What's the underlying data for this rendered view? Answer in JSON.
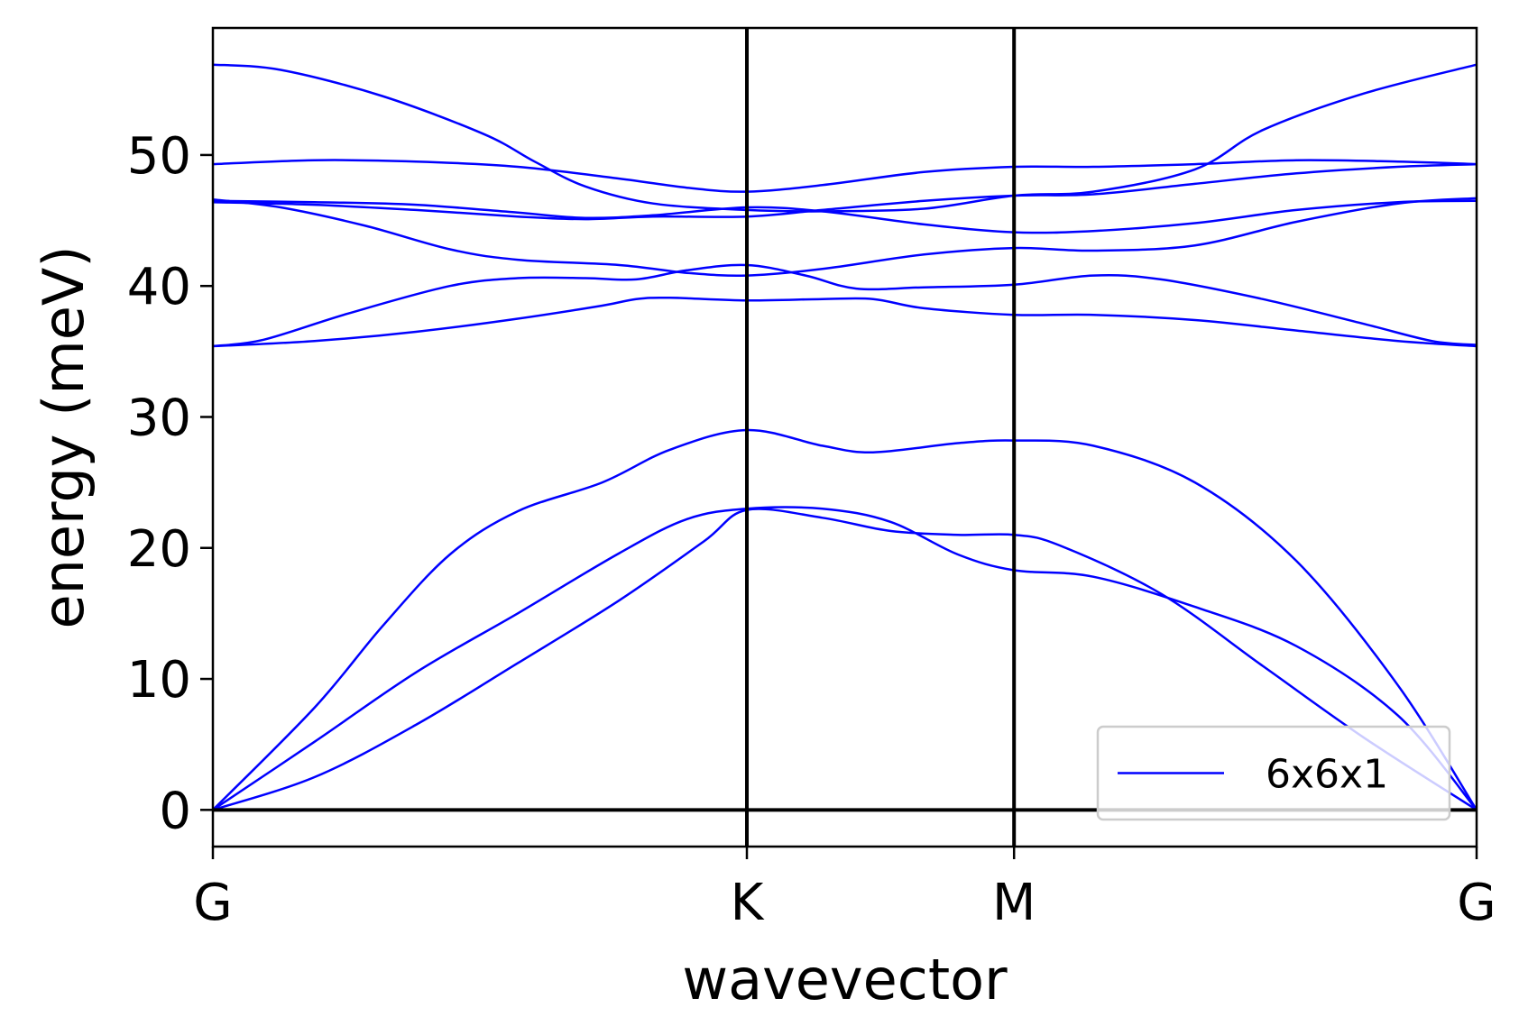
{
  "chart_data": {
    "type": "line",
    "xlabel": "wavevector",
    "ylabel": "energy (meV)",
    "xlim": [
      0,
      3.732
    ],
    "ylim": [
      -2.8,
      59.7
    ],
    "x_ticks": [
      {
        "label": "G",
        "x": 0
      },
      {
        "label": "K",
        "x": 1.577
      },
      {
        "label": "M",
        "x": 2.366
      },
      {
        "label": "G",
        "x": 3.732
      }
    ],
    "y_ticks": [
      0,
      10,
      20,
      30,
      40,
      50
    ],
    "vertical_lines_at": [
      1.577,
      2.366
    ],
    "horizontal_line_at": 0,
    "grid": false,
    "legend": {
      "position": "lower-right",
      "entries": [
        "6x6x1"
      ]
    },
    "series_color": "#0000ff",
    "series": [
      {
        "name": "6x6x1",
        "points": [
          [
            0,
            0
          ],
          [
            0.3,
            2.5
          ],
          [
            0.6,
            6.5
          ],
          [
            0.9,
            11.2
          ],
          [
            1.2,
            16
          ],
          [
            1.45,
            20.5
          ],
          [
            1.577,
            22.9
          ],
          [
            1.8,
            22.3
          ],
          [
            2.0,
            21.3
          ],
          [
            2.2,
            21.0
          ],
          [
            2.366,
            21.0
          ],
          [
            2.5,
            20.2
          ],
          [
            2.8,
            16.5
          ],
          [
            3.1,
            11
          ],
          [
            3.4,
            5.5
          ],
          [
            3.732,
            0
          ]
        ]
      },
      {
        "name": "",
        "points": [
          [
            0,
            0
          ],
          [
            0.3,
            5.2
          ],
          [
            0.6,
            10.5
          ],
          [
            0.9,
            15
          ],
          [
            1.2,
            19.6
          ],
          [
            1.4,
            22.2
          ],
          [
            1.577,
            23.0
          ],
          [
            1.8,
            23.0
          ],
          [
            2.0,
            22.0
          ],
          [
            2.2,
            19.5
          ],
          [
            2.366,
            18.3
          ],
          [
            2.6,
            17.8
          ],
          [
            2.9,
            15.5
          ],
          [
            3.2,
            12.5
          ],
          [
            3.5,
            7.2
          ],
          [
            3.732,
            0
          ]
        ]
      },
      {
        "name": "",
        "points": [
          [
            0,
            0
          ],
          [
            0.3,
            7.8
          ],
          [
            0.5,
            14
          ],
          [
            0.7,
            19.5
          ],
          [
            0.9,
            22.8
          ],
          [
            1.15,
            25
          ],
          [
            1.35,
            27.5
          ],
          [
            1.577,
            29.0
          ],
          [
            1.8,
            27.8
          ],
          [
            1.95,
            27.3
          ],
          [
            2.2,
            28.0
          ],
          [
            2.366,
            28.2
          ],
          [
            2.6,
            27.8
          ],
          [
            2.9,
            25
          ],
          [
            3.2,
            19
          ],
          [
            3.5,
            9.5
          ],
          [
            3.732,
            0
          ]
        ]
      },
      {
        "name": "",
        "points": [
          [
            0,
            35.4
          ],
          [
            0.3,
            35.8
          ],
          [
            0.6,
            36.5
          ],
          [
            0.9,
            37.5
          ],
          [
            1.15,
            38.5
          ],
          [
            1.25,
            39.0
          ],
          [
            1.35,
            39.1
          ],
          [
            1.577,
            38.9
          ],
          [
            1.8,
            39.0
          ],
          [
            1.95,
            39.0
          ],
          [
            2.1,
            38.3
          ],
          [
            2.366,
            37.8
          ],
          [
            2.6,
            37.8
          ],
          [
            2.9,
            37.4
          ],
          [
            3.2,
            36.6
          ],
          [
            3.5,
            35.8
          ],
          [
            3.732,
            35.4
          ]
        ]
      },
      {
        "name": "",
        "points": [
          [
            0,
            35.4
          ],
          [
            0.15,
            35.9
          ],
          [
            0.4,
            37.9
          ],
          [
            0.7,
            40.0
          ],
          [
            0.9,
            40.6
          ],
          [
            1.1,
            40.6
          ],
          [
            1.25,
            40.5
          ],
          [
            1.4,
            41.2
          ],
          [
            1.577,
            41.6
          ],
          [
            1.75,
            40.8
          ],
          [
            1.9,
            39.8
          ],
          [
            2.1,
            39.9
          ],
          [
            2.366,
            40.1
          ],
          [
            2.6,
            40.8
          ],
          [
            2.8,
            40.5
          ],
          [
            3.1,
            39.0
          ],
          [
            3.4,
            37.1
          ],
          [
            3.6,
            35.8
          ],
          [
            3.732,
            35.5
          ]
        ]
      },
      {
        "name": "",
        "points": [
          [
            0,
            46.6
          ],
          [
            0.2,
            46.0
          ],
          [
            0.45,
            44.6
          ],
          [
            0.7,
            42.8
          ],
          [
            0.9,
            42.0
          ],
          [
            1.2,
            41.6
          ],
          [
            1.4,
            41.0
          ],
          [
            1.577,
            40.8
          ],
          [
            1.8,
            41.3
          ],
          [
            2.1,
            42.4
          ],
          [
            2.366,
            42.9
          ],
          [
            2.6,
            42.7
          ],
          [
            2.9,
            43.1
          ],
          [
            3.2,
            44.9
          ],
          [
            3.5,
            46.3
          ],
          [
            3.732,
            46.7
          ]
        ]
      },
      {
        "name": "",
        "points": [
          [
            0,
            46.4
          ],
          [
            0.3,
            46.2
          ],
          [
            0.6,
            45.8
          ],
          [
            0.9,
            45.3
          ],
          [
            1.1,
            45.1
          ],
          [
            1.3,
            45.3
          ],
          [
            1.577,
            45.3
          ],
          [
            1.8,
            45.8
          ],
          [
            2.1,
            46.5
          ],
          [
            2.366,
            46.9
          ],
          [
            2.6,
            47.0
          ],
          [
            2.9,
            47.8
          ],
          [
            3.2,
            48.6
          ],
          [
            3.5,
            49.1
          ],
          [
            3.732,
            49.3
          ]
        ]
      },
      {
        "name": "",
        "points": [
          [
            0,
            46.5
          ],
          [
            0.3,
            46.4
          ],
          [
            0.6,
            46.2
          ],
          [
            0.9,
            45.6
          ],
          [
            1.1,
            45.2
          ],
          [
            1.3,
            45.4
          ],
          [
            1.577,
            46.0
          ],
          [
            1.8,
            45.7
          ],
          [
            2.1,
            44.7
          ],
          [
            2.366,
            44.1
          ],
          [
            2.6,
            44.2
          ],
          [
            2.9,
            44.8
          ],
          [
            3.2,
            45.8
          ],
          [
            3.5,
            46.4
          ],
          [
            3.732,
            46.5
          ]
        ]
      },
      {
        "name": "",
        "points": [
          [
            0,
            49.3
          ],
          [
            0.3,
            49.6
          ],
          [
            0.6,
            49.5
          ],
          [
            0.9,
            49.1
          ],
          [
            1.2,
            48.2
          ],
          [
            1.4,
            47.5
          ],
          [
            1.577,
            47.2
          ],
          [
            1.8,
            47.7
          ],
          [
            2.1,
            48.7
          ],
          [
            2.366,
            49.1
          ],
          [
            2.6,
            49.1
          ],
          [
            2.9,
            49.3
          ],
          [
            3.2,
            49.6
          ],
          [
            3.5,
            49.5
          ],
          [
            3.732,
            49.3
          ]
        ]
      },
      {
        "name": "",
        "points": [
          [
            0,
            56.9
          ],
          [
            0.2,
            56.5
          ],
          [
            0.5,
            54.5
          ],
          [
            0.8,
            51.6
          ],
          [
            0.95,
            49.5
          ],
          [
            1.1,
            47.6
          ],
          [
            1.3,
            46.3
          ],
          [
            1.577,
            45.8
          ],
          [
            1.8,
            45.7
          ],
          [
            2.1,
            45.9
          ],
          [
            2.366,
            46.9
          ],
          [
            2.6,
            47.2
          ],
          [
            2.9,
            48.9
          ],
          [
            3.1,
            51.9
          ],
          [
            3.4,
            54.7
          ],
          [
            3.732,
            56.9
          ]
        ]
      }
    ]
  }
}
